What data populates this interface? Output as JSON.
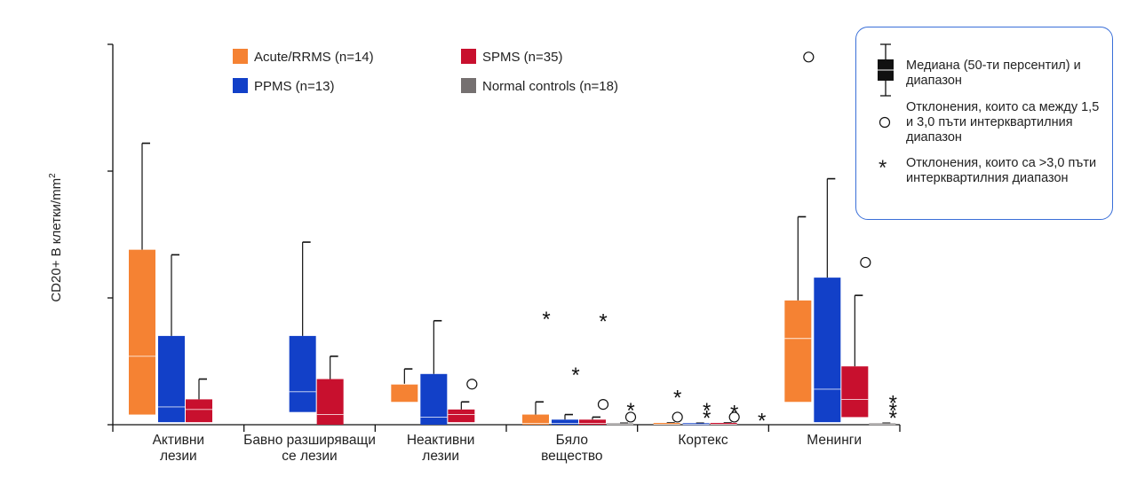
{
  "chart_data": {
    "type": "boxplot",
    "ylabel_main": "CD20+ B клетки/mm",
    "ylabel_sup": "2",
    "yticks_count": 3,
    "categories": [
      [
        "Активни",
        "лезии"
      ],
      [
        "Бавно разширяващи",
        "се лезии"
      ],
      [
        "Неактивни",
        "лезии"
      ],
      [
        "Бяло",
        "вещество"
      ],
      [
        "Кортекс"
      ],
      [
        "Менинги"
      ]
    ],
    "series": [
      {
        "name": "Acute/RRMS (n=14)",
        "color": "#f58233"
      },
      {
        "name": "PPMS (n=13)",
        "color": "#1240c8"
      },
      {
        "name": "SPMS (n=35)",
        "color": "#c8102e"
      },
      {
        "name": "Normal controls (n=18)",
        "color": "#757070"
      }
    ],
    "boxes": [
      {
        "cat": 0,
        "series": 0,
        "q1": 0.04,
        "med": 0.27,
        "q3": 0.69,
        "whisker_hi": 1.11
      },
      {
        "cat": 0,
        "series": 1,
        "q1": 0.01,
        "med": 0.07,
        "q3": 0.35,
        "whisker_hi": 0.67
      },
      {
        "cat": 0,
        "series": 2,
        "q1": 0.01,
        "med": 0.06,
        "q3": 0.1,
        "whisker_hi": 0.18
      },
      {
        "cat": 1,
        "series": 1,
        "q1": 0.05,
        "med": 0.13,
        "q3": 0.35,
        "whisker_hi": 0.72
      },
      {
        "cat": 1,
        "series": 2,
        "q1": 0.0,
        "med": 0.04,
        "q3": 0.18,
        "whisker_hi": 0.27
      },
      {
        "cat": 2,
        "series": 0,
        "q1": 0.09,
        "med": 0.16,
        "q3": 0.16,
        "whisker_hi": 0.22
      },
      {
        "cat": 2,
        "series": 1,
        "q1": 0.0,
        "med": 0.03,
        "q3": 0.2,
        "whisker_hi": 0.41
      },
      {
        "cat": 2,
        "series": 2,
        "q1": 0.01,
        "med": 0.04,
        "q3": 0.06,
        "whisker_hi": 0.09
      },
      {
        "cat": 3,
        "series": 0,
        "q1": 0.0,
        "med": 0.005,
        "q3": 0.04,
        "whisker_hi": 0.09
      },
      {
        "cat": 3,
        "series": 1,
        "q1": 0.0,
        "med": 0.005,
        "q3": 0.02,
        "whisker_hi": 0.04
      },
      {
        "cat": 3,
        "series": 2,
        "q1": 0.0,
        "med": 0.005,
        "q3": 0.02,
        "whisker_hi": 0.03
      },
      {
        "cat": 3,
        "series": 3,
        "q1": 0.0,
        "med": 0.003,
        "q3": 0.006,
        "whisker_hi": 0.006
      },
      {
        "cat": 4,
        "series": 0,
        "q1": 0.0,
        "med": 0.002,
        "q3": 0.007,
        "whisker_hi": 0.007
      },
      {
        "cat": 4,
        "series": 1,
        "q1": 0.0,
        "med": 0.002,
        "q3": 0.006,
        "whisker_hi": 0.006
      },
      {
        "cat": 4,
        "series": 2,
        "q1": 0.0,
        "med": 0.002,
        "q3": 0.007,
        "whisker_hi": 0.007
      },
      {
        "cat": 5,
        "series": 0,
        "q1": 0.09,
        "med": 0.34,
        "q3": 0.49,
        "whisker_hi": 0.82
      },
      {
        "cat": 5,
        "series": 1,
        "q1": 0.01,
        "med": 0.14,
        "q3": 0.58,
        "whisker_hi": 0.97
      },
      {
        "cat": 5,
        "series": 2,
        "q1": 0.03,
        "med": 0.1,
        "q3": 0.23,
        "whisker_hi": 0.51
      },
      {
        "cat": 5,
        "series": 3,
        "q1": 0.0,
        "med": 0.003,
        "q3": 0.006,
        "whisker_hi": 0.006
      }
    ],
    "outliers_circle": [
      {
        "cat": 2,
        "series": 2,
        "y": 0.16
      },
      {
        "cat": 3,
        "series": 2,
        "y": 0.08
      },
      {
        "cat": 3,
        "series": 3,
        "y": 0.03
      },
      {
        "cat": 4,
        "series": 0,
        "y": 0.03
      },
      {
        "cat": 4,
        "series": 2,
        "y": 0.03
      },
      {
        "cat": 5,
        "series": 0,
        "y": 1.45
      },
      {
        "cat": 5,
        "series": 2,
        "y": 0.64
      }
    ],
    "outliers_star": [
      {
        "cat": 3,
        "series": 0,
        "y": 0.42
      },
      {
        "cat": 3,
        "series": 1,
        "y": 0.2
      },
      {
        "cat": 3,
        "series": 2,
        "y": 0.41
      },
      {
        "cat": 3,
        "series": 3,
        "y": 0.06
      },
      {
        "cat": 4,
        "series": 0,
        "y": 0.11
      },
      {
        "cat": 4,
        "series": 1,
        "y": 0.06
      },
      {
        "cat": 4,
        "series": 1,
        "y": 0.03
      },
      {
        "cat": 4,
        "series": 2,
        "y": 0.05
      },
      {
        "cat": 4,
        "series": 3,
        "y": 0.02
      },
      {
        "cat": 5,
        "series": 3,
        "y": 0.09
      },
      {
        "cat": 5,
        "series": 3,
        "y": 0.06
      },
      {
        "cat": 5,
        "series": 3,
        "y": 0.03
      }
    ],
    "ylim": [
      0,
      1.5
    ],
    "legend_placement": "top-center"
  },
  "key": {
    "box": "Медиана (50-ти персентил) и диапазон",
    "circle": "Отклонения, които са между 1,5 и 3,0 пъти интерквартилния диапазон",
    "star": "Отклонения, които са >3,0 пъти интерквартилния диапазон",
    "star_glyph": "*"
  }
}
